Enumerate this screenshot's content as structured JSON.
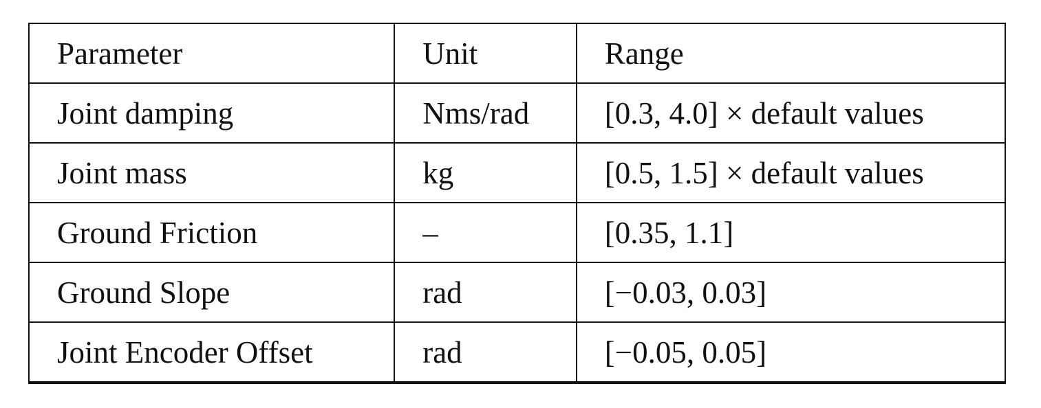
{
  "table": {
    "header": [
      "Parameter",
      "Unit",
      "Range"
    ],
    "rows": [
      [
        "Joint damping",
        "Nms/rad",
        "[0.3, 4.0] × default values"
      ],
      [
        "Joint mass",
        "kg",
        "[0.5, 1.5] × default values"
      ],
      [
        "Ground Friction",
        "–",
        "[0.35, 1.1]"
      ],
      [
        "Ground Slope",
        "rad",
        "[−0.03, 0.03]"
      ],
      [
        "Joint Encoder Offset",
        "rad",
        "[−0.05, 0.05]"
      ]
    ]
  }
}
